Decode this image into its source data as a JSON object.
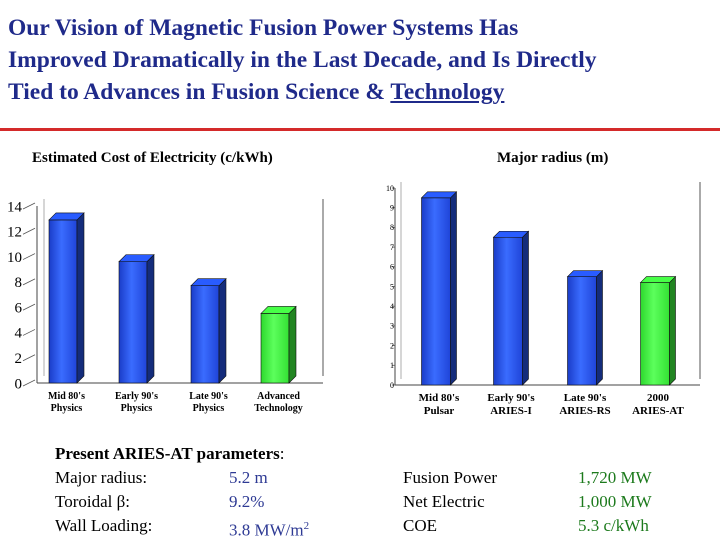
{
  "title": {
    "lines": [
      "Our Vision of Magnetic Fusion Power Systems Has",
      "Improved Dramatically in the Last Decade, and Is Directly",
      "Tied to Advances in Fusion Science & "
    ],
    "underlined": "Technology"
  },
  "colors": {
    "title": "#1f2a8a",
    "rule": "#d42a2a",
    "bar_blue": "#2450e0",
    "bar_green": "#3ef23e",
    "value_green": "#1c7a1c"
  },
  "chart_data": [
    {
      "type": "bar",
      "title": "Estimated Cost of  Electricity (c/kWh)",
      "categories": [
        [
          "Mid 80's",
          "Physics"
        ],
        [
          "Early 90's",
          "Physics"
        ],
        [
          "Late 90's",
          "Physics"
        ],
        [
          "Advanced",
          "Technology"
        ]
      ],
      "values": [
        12.9,
        9.6,
        7.7,
        5.5
      ],
      "bar_colors": [
        "blue",
        "blue",
        "blue",
        "green"
      ],
      "yticks": [
        0,
        2,
        4,
        6,
        8,
        10,
        12,
        14
      ],
      "ylim": [
        0,
        14
      ],
      "grid": false,
      "style": "3d"
    },
    {
      "type": "bar",
      "title": "Major radius (m)",
      "categories": [
        [
          "Mid 80's",
          "Pulsar"
        ],
        [
          "Early 90's",
          "ARIES-I"
        ],
        [
          "Late 90's",
          "ARIES-RS"
        ],
        [
          "2000",
          "ARIES-AT"
        ]
      ],
      "values": [
        9.5,
        7.5,
        5.5,
        5.2
      ],
      "bar_colors": [
        "blue",
        "blue",
        "blue",
        "green"
      ],
      "yticks": [
        0,
        1,
        2,
        3,
        4,
        5,
        6,
        7,
        8,
        9,
        10
      ],
      "ylim": [
        0,
        10
      ],
      "grid": false,
      "style": "3d"
    }
  ],
  "params": {
    "heading_bold": "Present ARIES-AT parameters",
    "heading_colon": ":",
    "left": [
      {
        "label": "Major radius:",
        "value": "5.2 m"
      },
      {
        "label_prefix": "Toroidal ",
        "label_symbol": "β",
        "label_suffix": ":",
        "value": "9.2%"
      },
      {
        "label": "Wall Loading:",
        "value_prefix": "3.8 MW/m",
        "value_sup": "2"
      }
    ],
    "right": [
      {
        "label": "Fusion Power",
        "value": "1,720 MW"
      },
      {
        "label": "Net Electric",
        "value": "1,000 MW"
      },
      {
        "label": "COE",
        "value": "5.3 c/kWh"
      }
    ]
  }
}
